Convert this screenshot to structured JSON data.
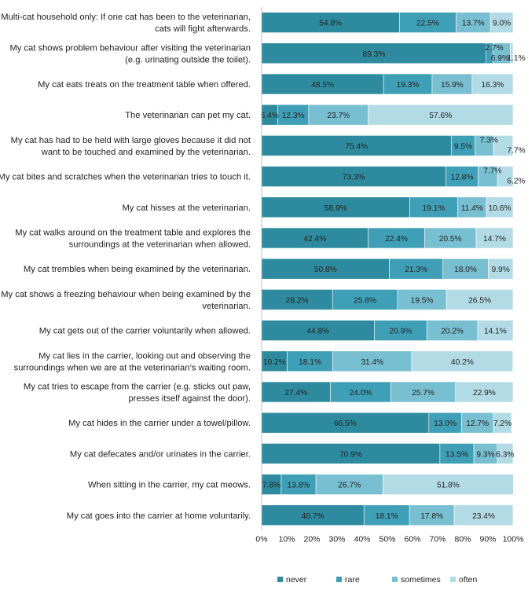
{
  "chart_data": {
    "type": "bar",
    "orientation": "horizontal",
    "stacked": true,
    "categories": [
      "Multi-cat household only: If one cat has been to the veterinarian, cats will fight afterwards.",
      "My cat shows problem behaviour after visiting the veterinarian (e.g. urinating outside the toilet).",
      "My cat eats treats on the treatment table when offered.",
      "The veterinarian can pet my cat.",
      "My cat has had to be held with large gloves because it did not want to be touched and examined by the veterinarian.",
      "My cat bites and scratches when the veterinarian tries to touch it.",
      "My cat hisses at the veterinarian.",
      "My cat walks around on the treatment table and explores the surroundings at the veterinarian when allowed.",
      "My cat trembles when being examined by the veterinarian.",
      "My cat shows a freezing behaviour when being examined by the veterinarian.",
      "My cat gets out of the carrier voluntarily when allowed.",
      "My cat lies in the carrier, looking out and observing the surroundings when we are at the veterinarian’s waiting room.",
      "My cat tries to escape from the carrier (e.g. sticks out paw, presses itself against the door).",
      "My cat hides in the carrier under a towel/pillow.",
      "My cat defecates and/or urinates in the carrier.",
      "When sitting in the carrier, my cat meows.",
      "My cat goes into the carrier at home voluntarily."
    ],
    "label_lines": [
      [
        "Multi-cat household only: If one cat has been to the veterinarian,",
        "cats will fight afterwards."
      ],
      [
        "My cat shows problem behaviour after visiting the veterinarian",
        "(e.g. urinating outside the toilet)."
      ],
      [
        "My cat eats treats on the treatment table when offered."
      ],
      [
        "The veterinarian can pet my cat."
      ],
      [
        "My cat has had to be held with large gloves because it did not",
        "want to be touched and examined by the veterinarian."
      ],
      [
        "My cat bites and scratches when the veterinarian tries to touch it."
      ],
      [
        "My cat hisses at the veterinarian."
      ],
      [
        "My cat walks around on the treatment table and explores the",
        "surroundings at the veterinarian when allowed."
      ],
      [
        "My cat trembles when being examined by the veterinarian."
      ],
      [
        "My cat shows a freezing behaviour when being examined by the",
        "veterinarian."
      ],
      [
        "My cat gets out of the carrier voluntarily when allowed."
      ],
      [
        "My cat lies in the carrier, looking out and observing the",
        "surroundings when we are at the veterinarian’s waiting room."
      ],
      [
        "My cat tries to escape from the carrier (e.g. sticks out paw,",
        "presses itself against the door)."
      ],
      [
        "My cat hides in the carrier under a towel/pillow."
      ],
      [
        "My cat defecates and/or urinates in the carrier."
      ],
      [
        "When sitting in the carrier, my cat meows."
      ],
      [
        "My cat goes into the carrier at home voluntarily."
      ]
    ],
    "series": [
      {
        "name": "never",
        "color": "#2e8b9f",
        "values": [
          54.8,
          89.3,
          48.5,
          6.4,
          75.4,
          73.3,
          58.9,
          42.4,
          50.8,
          28.2,
          44.8,
          10.2,
          27.4,
          66.5,
          70.9,
          7.8,
          40.7
        ]
      },
      {
        "name": "rare",
        "color": "#3f9fb6",
        "values": [
          22.5,
          2.7,
          19.3,
          12.3,
          9.5,
          12.8,
          19.1,
          22.4,
          21.3,
          25.8,
          20.9,
          18.1,
          24.0,
          13.0,
          13.5,
          13.8,
          18.1
        ]
      },
      {
        "name": "sometimes",
        "color": "#78bfd1",
        "values": [
          13.7,
          6.9,
          15.9,
          23.7,
          7.3,
          7.7,
          11.4,
          20.5,
          18.0,
          19.5,
          20.2,
          31.4,
          25.7,
          12.7,
          9.3,
          26.7,
          17.8
        ]
      },
      {
        "name": "often",
        "color": "#b3dbe6",
        "values": [
          9.0,
          1.1,
          16.3,
          57.6,
          7.7,
          6.2,
          10.6,
          14.7,
          9.9,
          26.5,
          14.1,
          40.2,
          22.9,
          7.2,
          6.3,
          51.8,
          23.4
        ]
      }
    ],
    "xlim": [
      0,
      100
    ],
    "x_ticks": [
      "0%",
      "10%",
      "20%",
      "30%",
      "40%",
      "50%",
      "60%",
      "70%",
      "80%",
      "90%",
      "100%"
    ],
    "value_format": "percent_one_decimal",
    "grid": false,
    "legend_position": "bottom",
    "title": "",
    "xlabel": "",
    "ylabel": ""
  }
}
